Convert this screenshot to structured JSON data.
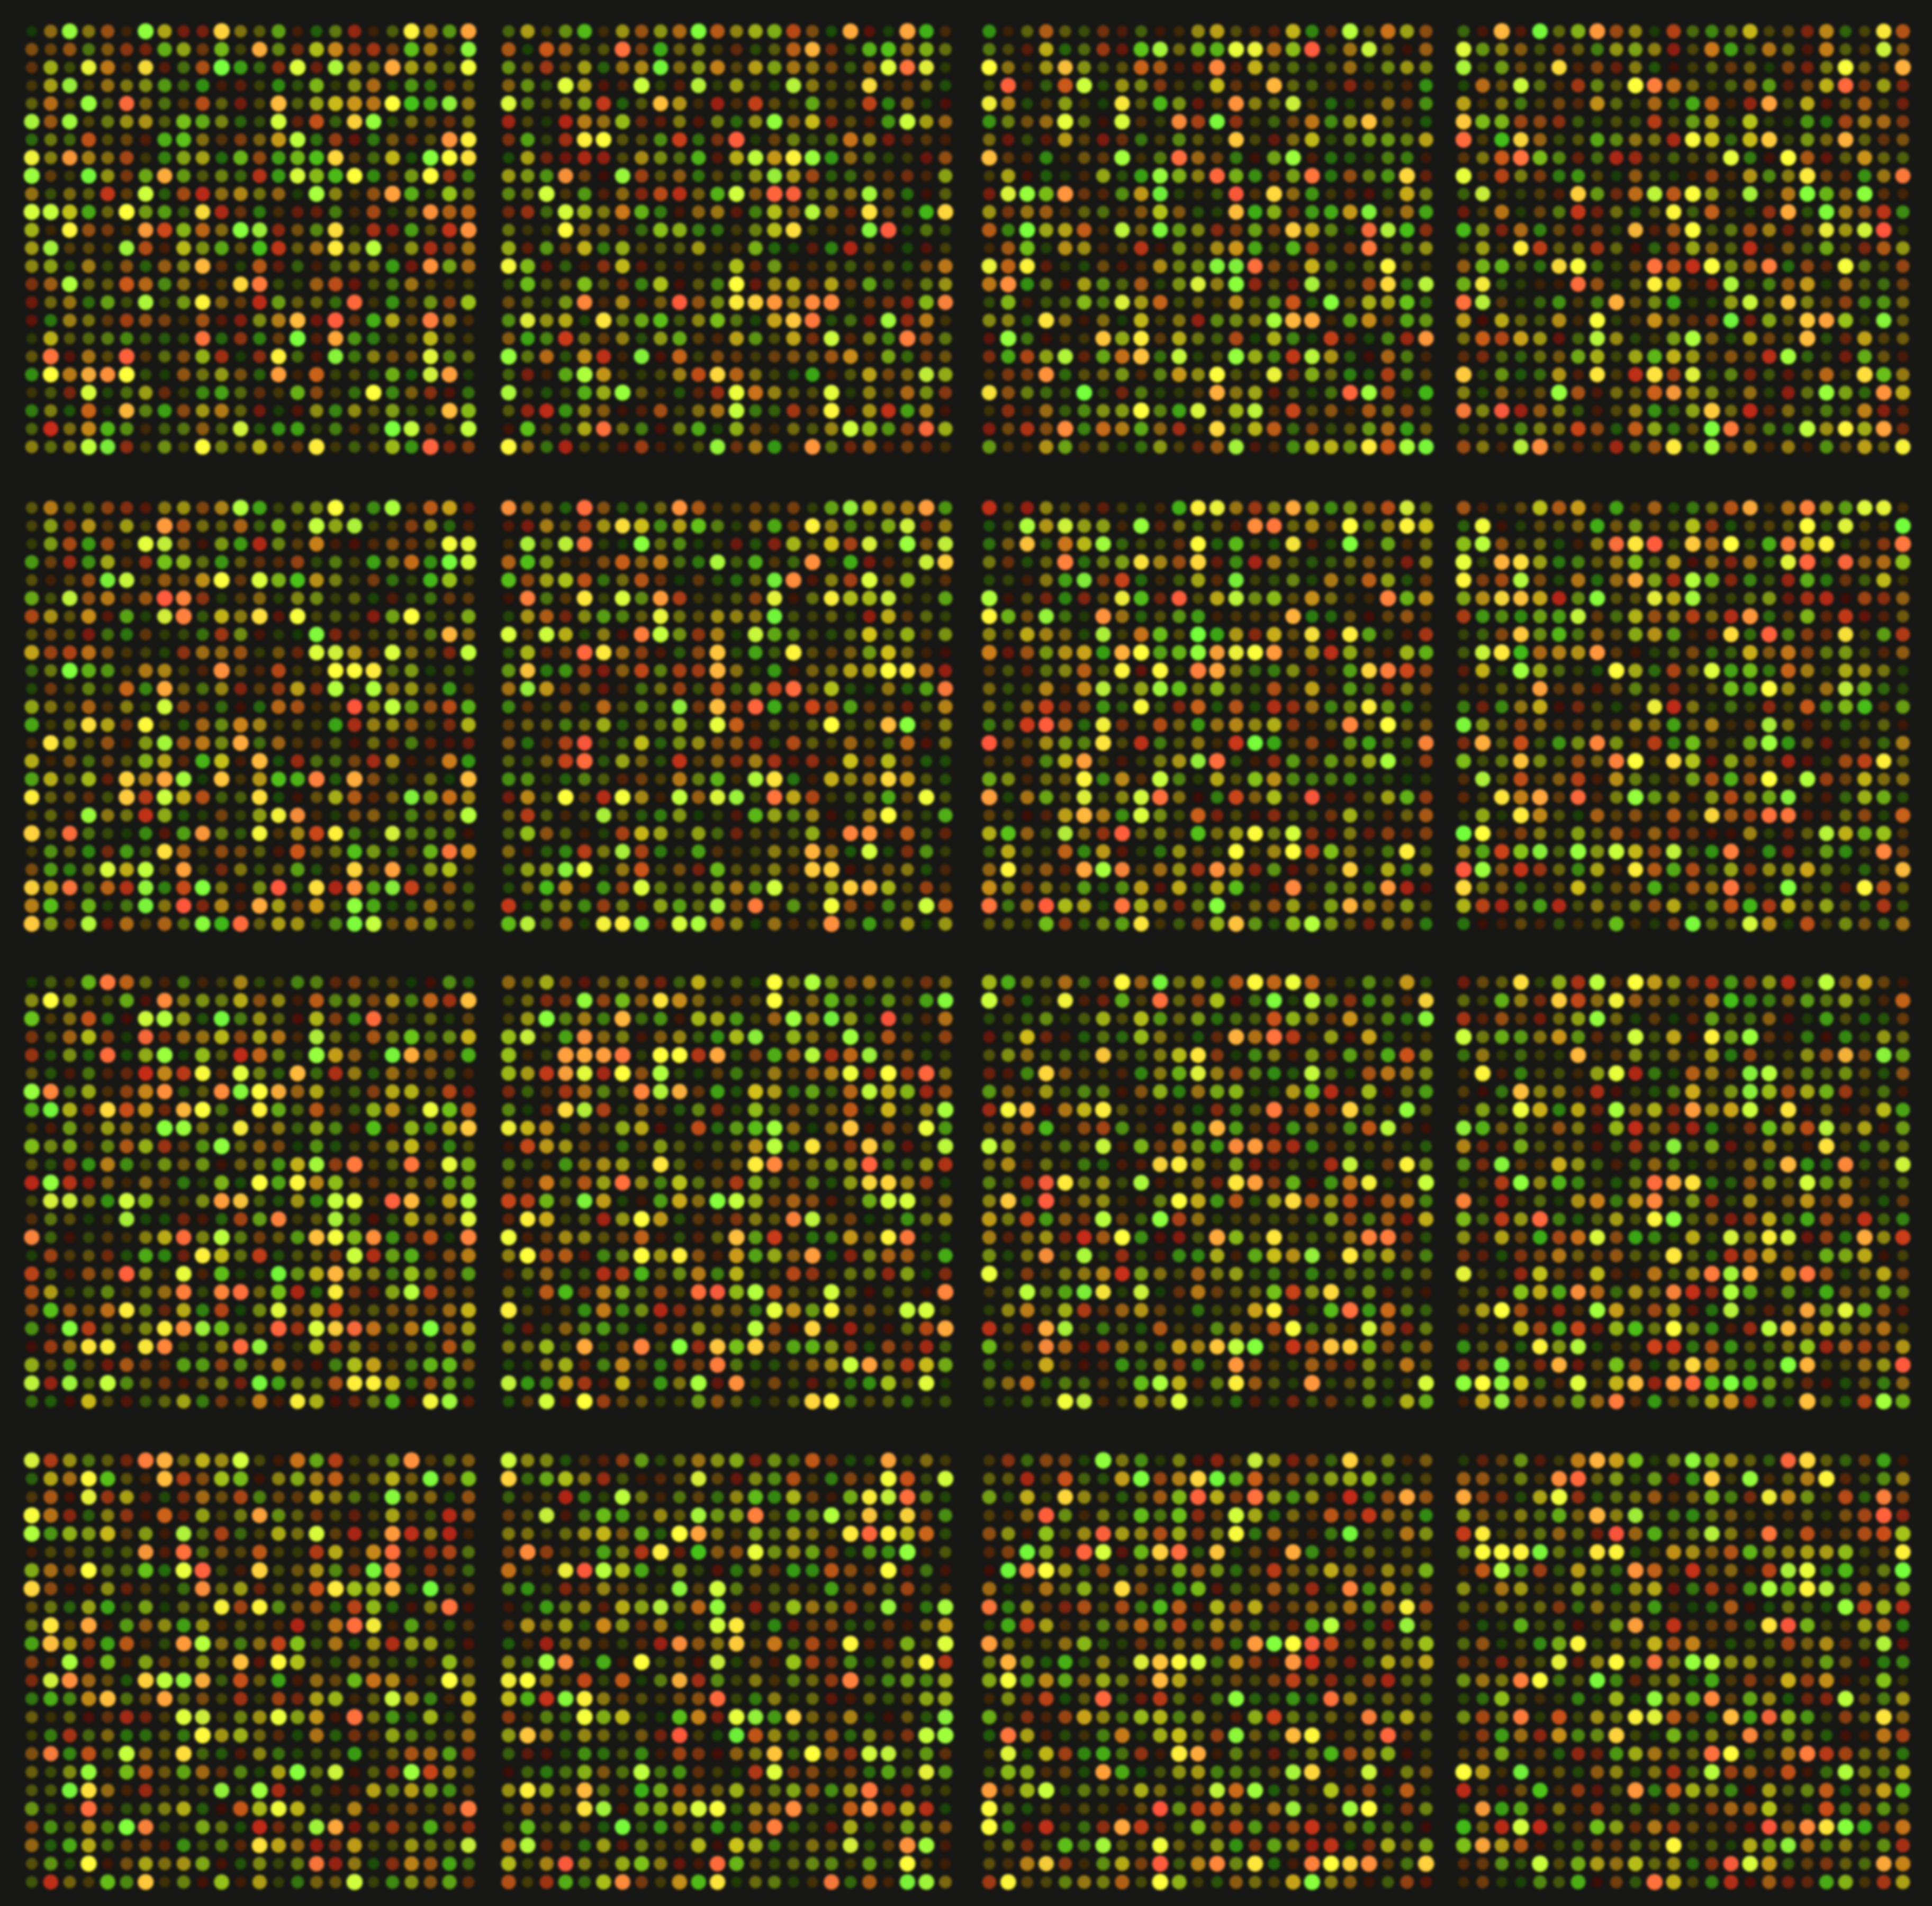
{
  "image": {
    "subject": "microarray",
    "block_grid": {
      "rows": 4,
      "cols": 4
    },
    "spots_per_block": {
      "rows": 24,
      "cols": 24
    },
    "colors": {
      "background": "#171715",
      "green": "#3ee02a",
      "yellow": "#f2f23a",
      "orange": "#f29a1e",
      "red": "#e83a18"
    }
  }
}
